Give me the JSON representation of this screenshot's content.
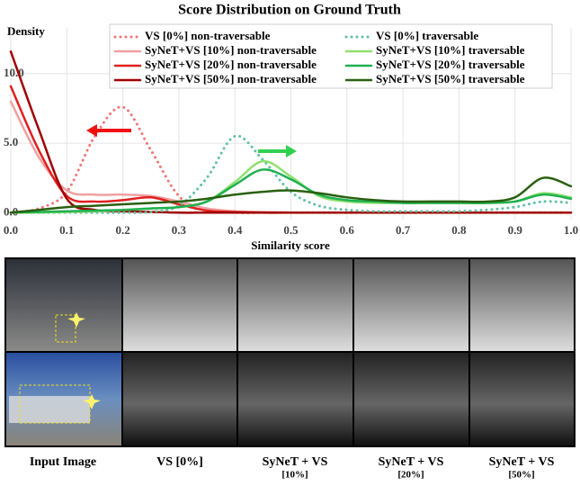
{
  "chart_data": {
    "type": "line",
    "title": "Score Distribution on Ground Truth",
    "y_label": "Density",
    "x_label": "Similarity score",
    "x": [
      0,
      0.05,
      0.1,
      0.15,
      0.2,
      0.25,
      0.3,
      0.35,
      0.4,
      0.45,
      0.5,
      0.55,
      0.6,
      0.65,
      0.7,
      0.75,
      0.8,
      0.85,
      0.9,
      0.95,
      1.0
    ],
    "xlim": [
      0,
      1.0
    ],
    "ylim": [
      -0.5,
      13.3
    ],
    "xticks": [
      {
        "value": 0,
        "label": "0.0"
      },
      0.1,
      0.2,
      0.3,
      0.4,
      0.5,
      0.6,
      0.7,
      0.8,
      0.9,
      {
        "value": 1.0,
        "label": "1.0"
      }
    ],
    "yticks": [
      {
        "value": 0,
        "label": "0.0"
      },
      {
        "value": 5,
        "label": "5.0"
      },
      {
        "value": 10,
        "label": "10.0"
      }
    ],
    "grid": true,
    "legend": "top",
    "series": [
      {
        "name": "VS [0%] non-traversable",
        "color": "#f07575",
        "style": "dotted",
        "values": [
          0,
          0.3,
          1.5,
          5.5,
          7.6,
          4.5,
          1.2,
          0.2,
          0,
          0,
          0,
          0,
          0,
          0,
          0,
          0,
          0,
          0,
          0,
          0,
          0
        ]
      },
      {
        "name": "SyNeT+VS [10%] non-traversable",
        "color": "#f0a0a0",
        "style": "solid",
        "values": [
          8.0,
          4.0,
          1.6,
          1.3,
          1.3,
          1.2,
          0.8,
          0.3,
          0.1,
          0.05,
          0,
          0,
          0,
          0,
          0,
          0,
          0,
          0,
          0,
          0,
          0
        ]
      },
      {
        "name": "SyNeT+VS [20%] non-traversable",
        "color": "#e02020",
        "style": "solid",
        "values": [
          9.1,
          4.5,
          1.2,
          0.8,
          0.9,
          1.1,
          0.6,
          0.15,
          0.05,
          0,
          0,
          0,
          0,
          0,
          0,
          0,
          0,
          0,
          0,
          0,
          0
        ]
      },
      {
        "name": "SyNeT+VS [50%] non-traversable",
        "color": "#a00000",
        "style": "solid",
        "values": [
          11.6,
          6.0,
          1.0,
          0.2,
          0.1,
          0.05,
          0,
          0,
          0,
          0,
          0,
          0,
          0,
          0,
          0,
          0,
          0,
          0,
          0,
          0,
          0
        ]
      },
      {
        "name": "VS [0%] traversable",
        "color": "#60c0a0",
        "style": "dotted",
        "values": [
          0,
          0,
          0,
          0,
          0,
          0.05,
          0.5,
          2.5,
          5.5,
          3.8,
          1.5,
          0.5,
          0.2,
          0.1,
          0.1,
          0.1,
          0.1,
          0.2,
          0.4,
          0.8,
          0.7
        ]
      },
      {
        "name": "SyNeT+VS [10%] traversable",
        "color": "#90e070",
        "style": "solid",
        "values": [
          0,
          0,
          0.05,
          0.1,
          0.2,
          0.3,
          0.4,
          0.8,
          2.2,
          3.7,
          2.6,
          1.2,
          0.8,
          0.7,
          0.7,
          0.7,
          0.7,
          0.7,
          0.8,
          1.4,
          1.1
        ]
      },
      {
        "name": "SyNeT+VS [20%] traversable",
        "color": "#20b050",
        "style": "solid",
        "values": [
          0,
          0.05,
          0.1,
          0.15,
          0.2,
          0.3,
          0.4,
          0.8,
          2.0,
          3.1,
          2.4,
          1.3,
          0.9,
          0.8,
          0.7,
          0.7,
          0.7,
          0.7,
          0.8,
          1.3,
          1.0
        ]
      },
      {
        "name": "SyNeT+VS [50%] traversable",
        "color": "#2a6010",
        "style": "solid",
        "values": [
          0,
          0.2,
          0.4,
          0.5,
          0.6,
          0.7,
          0.8,
          1.0,
          1.3,
          1.5,
          1.6,
          1.4,
          1.1,
          0.9,
          0.8,
          0.8,
          0.8,
          0.8,
          1.1,
          2.5,
          1.9
        ]
      }
    ]
  },
  "figure": {
    "captions": [
      {
        "text": "Input Image"
      },
      {
        "text": "VS [0%]"
      },
      {
        "text": "SyNeT + VS",
        "subtext": "[10%]"
      },
      {
        "text": "SyNeT + VS",
        "subtext": "[20%]"
      },
      {
        "text": "SyNeT + VS",
        "subtext": "[50%]"
      }
    ]
  }
}
